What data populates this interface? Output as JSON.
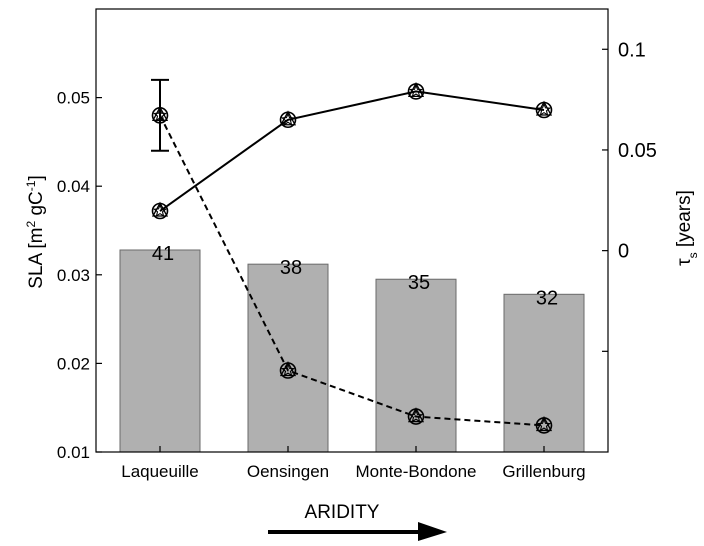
{
  "chart_data": {
    "type": "bar+line",
    "categories": [
      "Laqueuille",
      "Oensingen",
      "Monte-Bondone",
      "Grillenburg"
    ],
    "bars": {
      "values": [
        0.0328,
        0.0312,
        0.0295,
        0.0278
      ],
      "labels": [
        "41",
        "38",
        "35",
        "32"
      ],
      "color": "#b0b0b0"
    },
    "series": [
      {
        "style": "solid",
        "axis": "left",
        "values": [
          0.0372,
          0.0475,
          0.0507,
          0.0486
        ]
      },
      {
        "style": "dashed",
        "axis": "left",
        "values": [
          0.048,
          0.0192,
          0.014,
          0.013
        ]
      }
    ],
    "error_bar": {
      "index": 0,
      "low": 0.044,
      "high": 0.052
    },
    "left_axis": {
      "label_main": "SLA [m",
      "sup1": "2",
      "label_mid": " gC",
      "sup2": "-1",
      "label_end": "]",
      "ylim": [
        0.01,
        0.06
      ],
      "ticks": [
        0.01,
        0.02,
        0.03,
        0.04,
        0.05
      ],
      "tick_labels": [
        "0.01",
        "0.02",
        "0.03",
        "0.04",
        "0.05"
      ]
    },
    "right_axis": {
      "label_main": "τ",
      "label_sub": "s",
      "label_end": " [years]",
      "ylim": [
        -0.1,
        0.12
      ],
      "ticks": [
        -0.05,
        0,
        0.05,
        0.1
      ],
      "tick_labels": [
        "",
        "0",
        "0.05",
        "0.1"
      ]
    },
    "xlabel": "ARIDITY",
    "grid": false
  }
}
